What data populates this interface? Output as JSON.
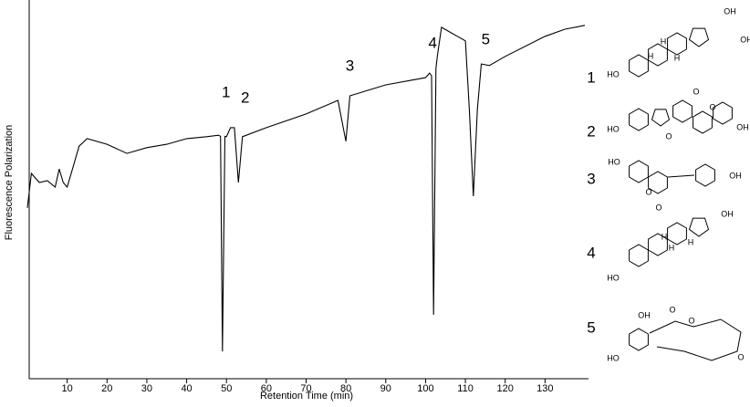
{
  "chart_data": {
    "type": "line",
    "x_label": "Retention Time (min)",
    "y_label": "Fluorescence Polarization",
    "xlim": [
      0,
      140
    ],
    "xticks": [
      10,
      20,
      30,
      40,
      50,
      60,
      70,
      80,
      90,
      100,
      110,
      120,
      130
    ],
    "ylim": [
      0,
      100
    ],
    "series": [
      {
        "color": "#000000",
        "x": [
          0,
          1,
          3,
          5,
          7,
          8,
          9,
          10,
          11,
          13,
          15,
          20,
          25,
          30,
          35,
          40,
          45,
          48,
          48.5,
          49,
          49.6,
          50,
          51,
          52,
          53,
          54,
          60,
          70,
          78,
          80,
          81,
          90,
          100,
          101,
          101.5,
          102,
          102.6,
          103,
          104,
          106,
          108,
          110,
          111,
          112,
          113,
          114,
          116,
          120,
          130,
          135,
          140
        ],
        "values": [
          45.1,
          54.2,
          51.8,
          52.3,
          50.6,
          55.4,
          51.8,
          50.6,
          54.2,
          61.4,
          63.4,
          61.9,
          59.5,
          61.0,
          61.9,
          63.4,
          63.9,
          64.3,
          64,
          7.2,
          64,
          63.9,
          66.3,
          66.3,
          51.8,
          63.9,
          66.3,
          69.9,
          73.5,
          62.7,
          74.7,
          77.6,
          79.5,
          80.7,
          80,
          16.9,
          82,
          85.5,
          92.8,
          91.6,
          90.4,
          89.2,
          71.1,
          48.2,
          71.1,
          83.1,
          82.7,
          85.1,
          90.4,
          92.3,
          93.3
        ]
      }
    ],
    "annotations": [
      {
        "text": "1",
        "x": 49.9,
        "y": 75.4
      },
      {
        "text": "2",
        "x": 54.7,
        "y": 74
      },
      {
        "text": "3",
        "x": 81,
        "y": 82.4
      },
      {
        "text": "4",
        "x": 101.8,
        "y": 88.4
      },
      {
        "text": "5",
        "x": 115.1,
        "y": 89.4
      }
    ]
  },
  "structures": [
    {
      "label": "1",
      "atoms": [
        "OH",
        "OH",
        "HO",
        "H",
        "H",
        "H"
      ]
    },
    {
      "label": "2",
      "atoms": [
        "O",
        "O",
        "HO",
        "O",
        "OH"
      ]
    },
    {
      "label": "3",
      "atoms": [
        "HO",
        "O",
        "O",
        "OH"
      ]
    },
    {
      "label": "4",
      "atoms": [
        "OH",
        "HO",
        "H",
        "H",
        "H"
      ]
    },
    {
      "label": "5",
      "atoms": [
        "OH",
        "O",
        "O",
        "HO",
        "O"
      ]
    }
  ]
}
